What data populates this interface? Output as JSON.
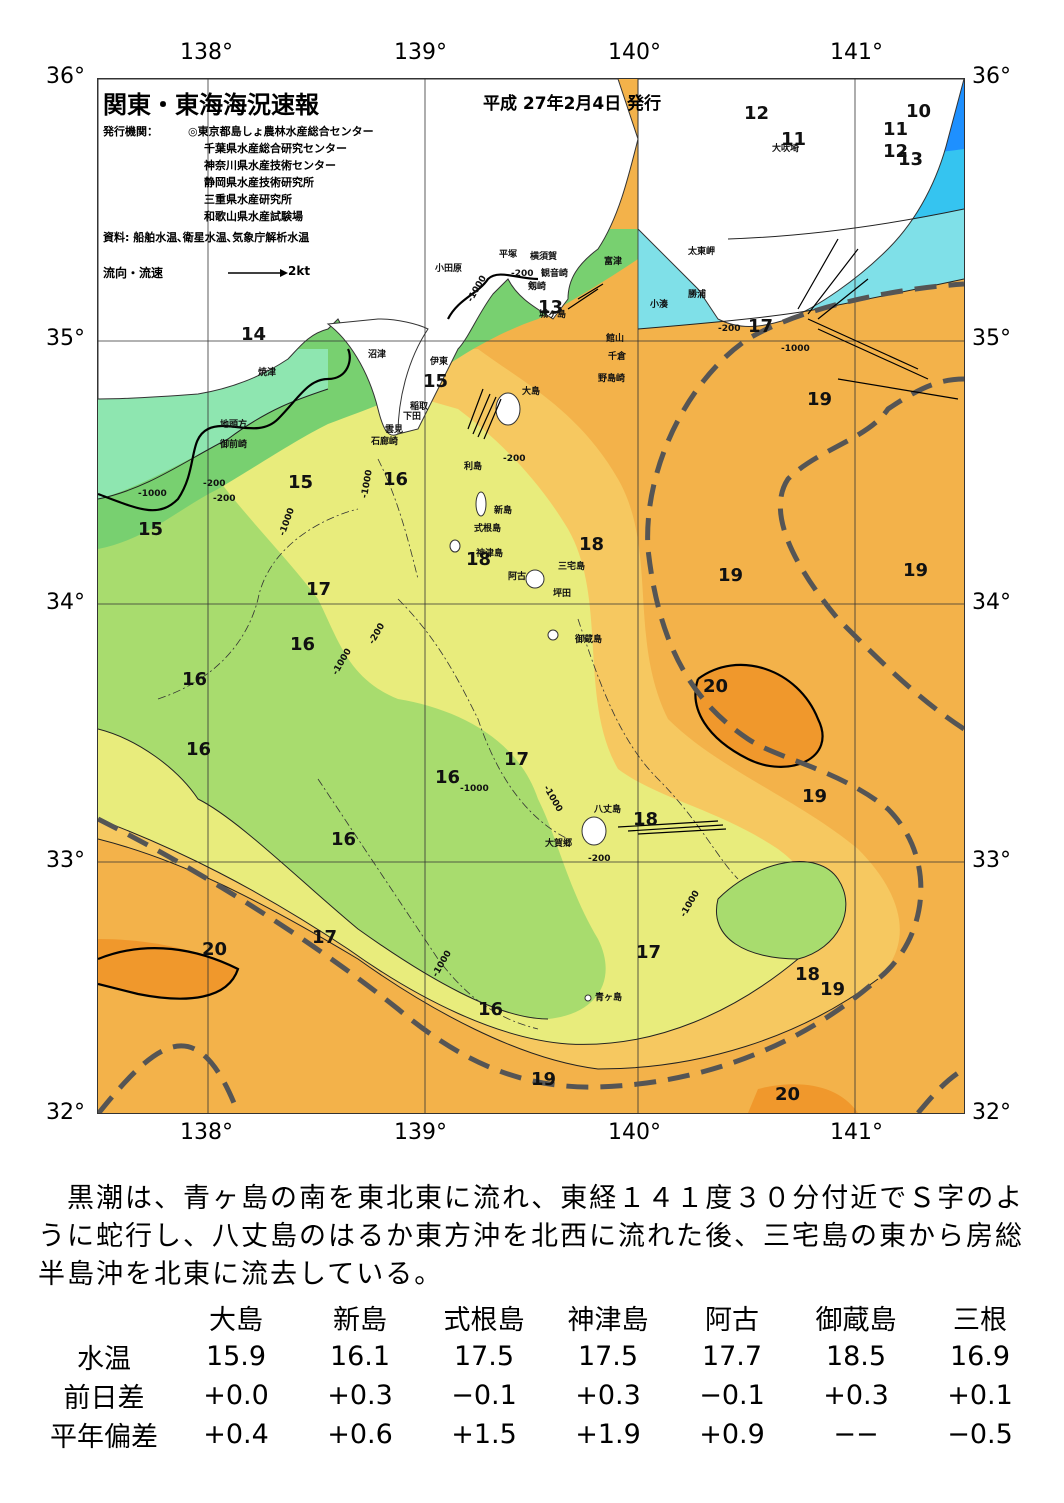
{
  "map": {
    "title": "関東・東海海況速報",
    "issue_date": "平成 27年2月4日 発行",
    "publisher_label": "発行機関：",
    "publishers": [
      "◎東京都島しょ農林水産総合センター",
      "千葉県水産総合研究センター",
      "神奈川県水産技術センター",
      "静岡県水産技術研究所",
      "三重県水産研究所",
      "和歌山県水産試験場"
    ],
    "source": "資料: 船舶水温､衛星水温､気象庁解析水温",
    "legend_label": "流向・流速",
    "legend_speed": "2kt",
    "lon_labels": [
      "138°",
      "139°",
      "140°",
      "141°"
    ],
    "lat_labels": [
      "36°",
      "35°",
      "34°",
      "33°",
      "32°"
    ],
    "isotherm_labels": [
      "10",
      "11",
      "11",
      "12",
      "13",
      "12",
      "13",
      "14",
      "15",
      "15",
      "15",
      "16",
      "17",
      "17",
      "16",
      "16",
      "16",
      "17",
      "16",
      "16",
      "17",
      "17",
      "16",
      "18",
      "18",
      "18",
      "19",
      "19",
      "19",
      "20",
      "19",
      "18",
      "19",
      "20",
      "19",
      "20"
    ],
    "contour_labels": [
      "-200",
      "-1000",
      "-200",
      "-1000",
      "-200",
      "-1000",
      "-200",
      "-1000",
      "-1000",
      "-200",
      "-1000",
      "-1000",
      "-1000",
      "-200",
      "-1000",
      "-200",
      "-1000"
    ],
    "places": [
      "大吠埼",
      "太東岬",
      "勝浦",
      "小湊",
      "館山",
      "千倉",
      "野島崎",
      "富津",
      "横須賀",
      "観音崎",
      "平塚",
      "剱崎",
      "城ヶ島",
      "小田原",
      "沼津",
      "伊東",
      "稲取",
      "下田",
      "雲見",
      "石廊崎",
      "焼津",
      "地頭方",
      "御前崎",
      "大島",
      "利島",
      "新島",
      "式根島",
      "神津島",
      "三宅島",
      "阿古",
      "坪田",
      "御蔵島",
      "八丈島",
      "大賀郷",
      "青ヶ島"
    ],
    "colors": {
      "t10": "#1e90ff",
      "t12": "#35c4f0",
      "t13": "#7fe0e8",
      "t14": "#8ee6b0",
      "t15": "#78d070",
      "t16": "#a8dc6e",
      "t17": "#e8ec7c",
      "t18": "#f6c860",
      "t19": "#f3b24a",
      "t20": "#f0982c",
      "land": "#ffffff",
      "kuroshio_axis": "#555555"
    }
  },
  "summary_text": "　黒潮は、青ヶ島の南を東北東に流れ、東経１４１度３０分付近でＳ字のように蛇行し、八丈島のはるか東方沖を北西に流れた後、三宅島の東から房総半島沖を北東に流去している。",
  "table": {
    "headers": [
      "大島",
      "新島",
      "式根島",
      "神津島",
      "阿古",
      "御蔵島",
      "三根"
    ],
    "rows": [
      {
        "label": "水温",
        "values": [
          "15.9",
          "16.1",
          "17.5",
          "17.5",
          "17.7",
          "18.5",
          "16.9"
        ]
      },
      {
        "label": "前日差",
        "values": [
          "+0.0",
          "+0.3",
          "−0.1",
          "+0.3",
          "−0.1",
          "+0.3",
          "+0.1"
        ]
      },
      {
        "label": "平年偏差",
        "values": [
          "+0.4",
          "+0.6",
          "+1.5",
          "+1.9",
          "+0.9",
          "−−",
          "−0.5"
        ]
      }
    ]
  }
}
